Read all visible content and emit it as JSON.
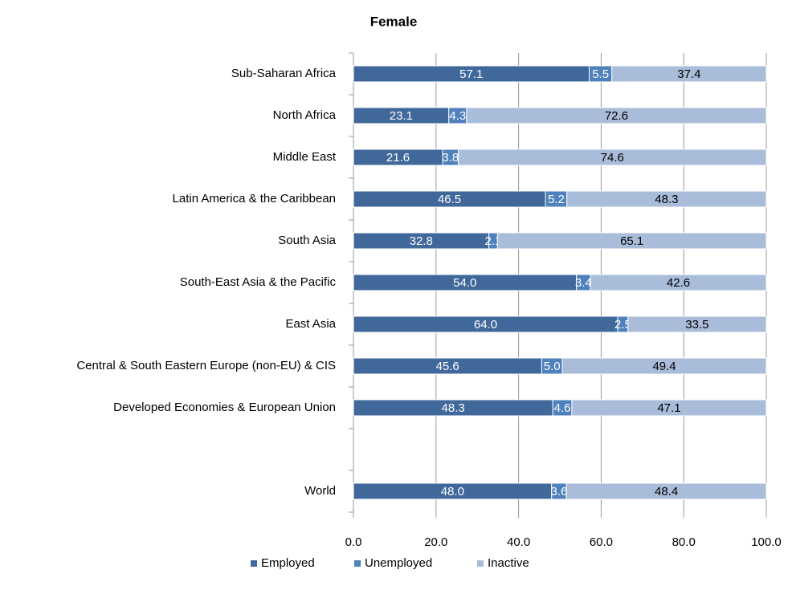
{
  "chart_data": {
    "type": "stacked-barh",
    "title": "Female",
    "categories": [
      "Sub-Saharan Africa",
      "North Africa",
      "Middle East",
      "Latin America & the Caribbean",
      "South Asia",
      "South-East Asia & the Pacific",
      "East Asia",
      "Central & South Eastern Europe (non-EU) & CIS",
      "Developed Economies & European Union",
      null,
      "World"
    ],
    "series": [
      {
        "name": "Employed",
        "color": "#41689b",
        "label_color": "#ffffff",
        "values": [
          57.1,
          23.1,
          21.6,
          46.5,
          32.8,
          54.0,
          64.0,
          45.6,
          48.3,
          null,
          48.0
        ],
        "value_labels": [
          "57.1",
          "23.1",
          "21.6",
          "46.5",
          "32.8",
          "54.0",
          "64.0",
          "45.6",
          "48.3",
          null,
          "48.0"
        ]
      },
      {
        "name": "Unemployed",
        "color": "#4f81bd",
        "label_color": "#ffffff",
        "values": [
          5.5,
          4.3,
          3.8,
          5.2,
          2.1,
          3.4,
          2.5,
          5.0,
          4.6,
          null,
          3.6
        ],
        "value_labels": [
          "5.5",
          "4.3",
          "3.8",
          "5.2",
          "2.1",
          "3.4",
          "2.5",
          "5.0",
          "4.6",
          null,
          "3.6"
        ]
      },
      {
        "name": "Inactive",
        "color": "#a9bcd9",
        "label_color": "#000000",
        "values": [
          37.4,
          72.6,
          74.6,
          48.3,
          65.1,
          42.6,
          33.5,
          49.4,
          47.1,
          null,
          48.4
        ],
        "value_labels": [
          "37.4",
          "72.6",
          "74.6",
          "48.3",
          "65.1",
          "42.6",
          "33.5",
          "49.4",
          "47.1",
          null,
          "48.4"
        ]
      }
    ],
    "xlim": [
      0,
      100
    ],
    "xticks": [
      {
        "value": 0,
        "label": "0.0"
      },
      {
        "value": 20,
        "label": "20.0"
      },
      {
        "value": 40,
        "label": "40.0"
      },
      {
        "value": 60,
        "label": "60.0"
      },
      {
        "value": 80,
        "label": "80.0"
      },
      {
        "value": 100,
        "label": "100.0"
      }
    ],
    "grid": true,
    "legend": "bottom"
  }
}
